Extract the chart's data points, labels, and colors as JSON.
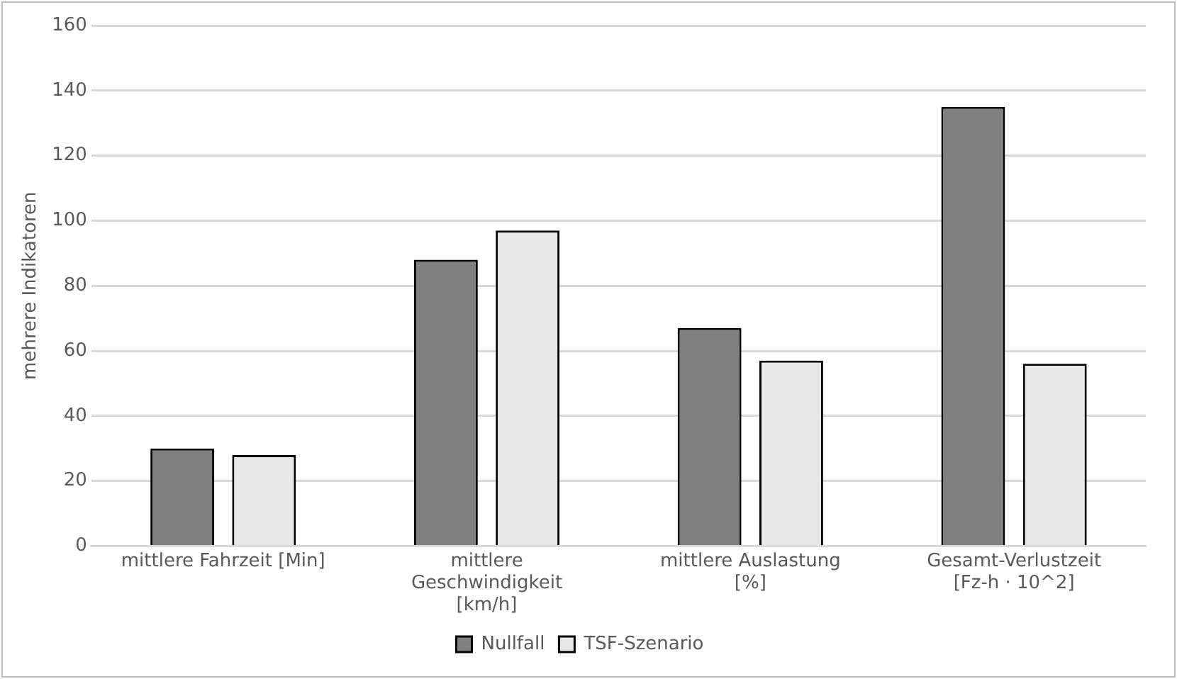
{
  "chart_data": {
    "type": "bar",
    "ylabel": "mehrere Indikatoren",
    "categories": [
      "mittlere Fahrzeit [Min]",
      "mittlere Geschwindigkeit [km/h]",
      "mittlere Auslastung [%]",
      "Gesamt-Verlustzeit [Fz-h · 10^2]"
    ],
    "series": [
      {
        "name": "Nullfall",
        "color": "#808080",
        "values": [
          30,
          88,
          67,
          135
        ]
      },
      {
        "name": "TSF-Szenario",
        "color": "#e8e8e8",
        "values": [
          28,
          97,
          57,
          56
        ]
      }
    ],
    "ylim": [
      0,
      160
    ],
    "yticks": [
      0,
      20,
      40,
      60,
      80,
      100,
      120,
      140,
      160
    ],
    "grid": "y",
    "legend": "bottom"
  }
}
